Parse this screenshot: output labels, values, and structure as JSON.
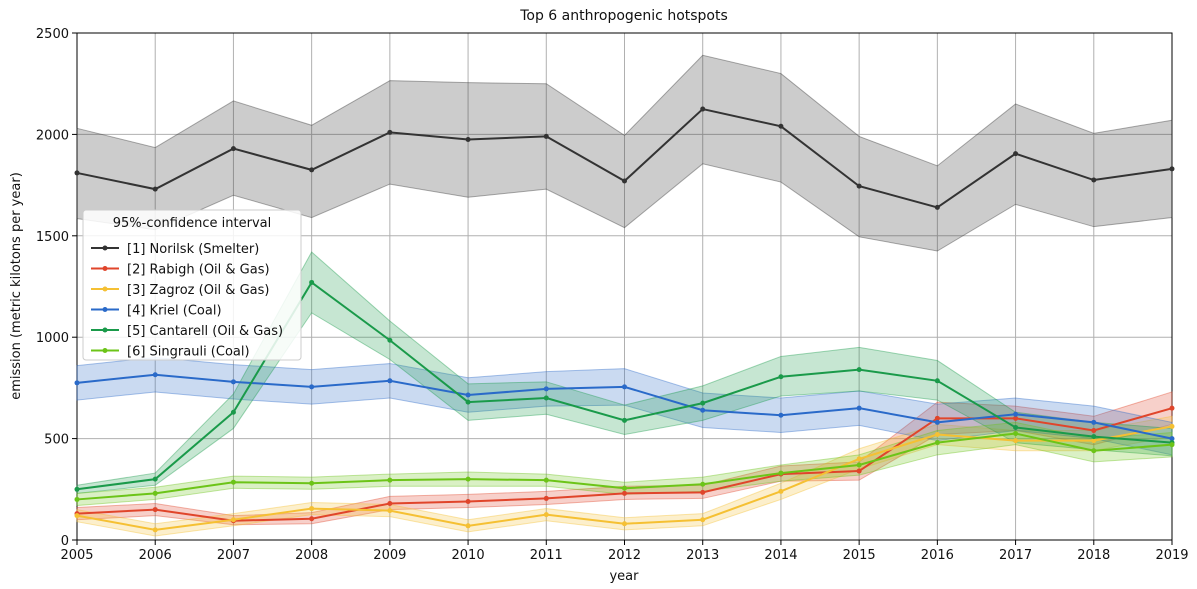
{
  "chart_data": {
    "type": "line",
    "title": "Top 6 anthropogenic hotspots",
    "xlabel": "year",
    "ylabel": "emission (metric kilotons per year)",
    "legend_title": "95%-confidence interval",
    "legend": "upper left",
    "grid": true,
    "x": [
      2005,
      2006,
      2007,
      2008,
      2009,
      2010,
      2011,
      2012,
      2013,
      2014,
      2015,
      2016,
      2017,
      2018,
      2019
    ],
    "xlim": [
      2005,
      2019
    ],
    "xticks": [
      2005,
      2006,
      2007,
      2008,
      2009,
      2010,
      2011,
      2012,
      2013,
      2014,
      2015,
      2016,
      2017,
      2018,
      2019
    ],
    "ylim": [
      0,
      2500
    ],
    "yticks": [
      0,
      500,
      1000,
      1500,
      2000,
      2500
    ],
    "series": [
      {
        "name": "[1] Norilsk (Smelter)",
        "color": "#333333",
        "values": [
          1810,
          1730,
          1930,
          1825,
          2010,
          1975,
          1990,
          1770,
          2125,
          2040,
          1745,
          1640,
          1905,
          1775,
          1830
        ],
        "upper": [
          2030,
          1935,
          2165,
          2045,
          2265,
          2255,
          2250,
          1995,
          2390,
          2300,
          1990,
          1845,
          2150,
          2005,
          2070
        ],
        "lower": [
          1585,
          1530,
          1700,
          1590,
          1755,
          1690,
          1730,
          1540,
          1855,
          1765,
          1495,
          1425,
          1655,
          1545,
          1590
        ]
      },
      {
        "name": "[2] Rabigh (Oil & Gas)",
        "color": "#e0452b",
        "values": [
          130,
          150,
          95,
          105,
          180,
          190,
          205,
          230,
          235,
          325,
          340,
          600,
          600,
          540,
          650
        ],
        "upper": [
          160,
          180,
          120,
          135,
          215,
          225,
          240,
          265,
          270,
          365,
          385,
          680,
          660,
          610,
          730
        ],
        "lower": [
          100,
          120,
          75,
          80,
          150,
          160,
          175,
          200,
          205,
          290,
          295,
          520,
          540,
          470,
          570
        ]
      },
      {
        "name": "[3] Zagroz (Oil & Gas)",
        "color": "#f5c033",
        "values": [
          120,
          50,
          100,
          155,
          145,
          70,
          125,
          80,
          100,
          240,
          400,
          520,
          490,
          490,
          560
        ],
        "upper": [
          150,
          80,
          130,
          185,
          175,
          100,
          155,
          110,
          130,
          280,
          450,
          570,
          540,
          540,
          610
        ],
        "lower": [
          90,
          20,
          70,
          125,
          115,
          40,
          95,
          50,
          70,
          200,
          350,
          470,
          440,
          440,
          510
        ]
      },
      {
        "name": "[4] Kriel (Coal)",
        "color": "#2a6ac9",
        "values": [
          775,
          815,
          780,
          755,
          785,
          715,
          745,
          755,
          640,
          615,
          650,
          580,
          620,
          580,
          500
        ],
        "upper": [
          860,
          900,
          865,
          840,
          870,
          800,
          830,
          845,
          725,
          700,
          735,
          670,
          700,
          660,
          580
        ],
        "lower": [
          690,
          730,
          695,
          670,
          700,
          630,
          660,
          665,
          555,
          530,
          565,
          490,
          540,
          500,
          420
        ]
      },
      {
        "name": "[5] Cantarell (Oil & Gas)",
        "color": "#1a9a4a",
        "values": [
          250,
          300,
          630,
          1270,
          985,
          680,
          700,
          590,
          675,
          805,
          840,
          785,
          555,
          510,
          480
        ],
        "upper": [
          270,
          330,
          720,
          1420,
          1080,
          770,
          780,
          665,
          760,
          905,
          950,
          885,
          630,
          580,
          550
        ],
        "lower": [
          230,
          270,
          550,
          1120,
          890,
          590,
          620,
          520,
          590,
          710,
          735,
          690,
          480,
          445,
          415
        ]
      },
      {
        "name": "[6] Singrauli (Coal)",
        "color": "#6cc418",
        "values": [
          200,
          230,
          285,
          280,
          295,
          300,
          295,
          255,
          275,
          330,
          370,
          480,
          525,
          440,
          470
        ],
        "upper": [
          230,
          260,
          315,
          310,
          325,
          335,
          325,
          285,
          310,
          370,
          420,
          540,
          580,
          500,
          530
        ],
        "lower": [
          170,
          200,
          255,
          250,
          265,
          265,
          265,
          225,
          240,
          290,
          320,
          420,
          470,
          385,
          410
        ]
      }
    ]
  }
}
